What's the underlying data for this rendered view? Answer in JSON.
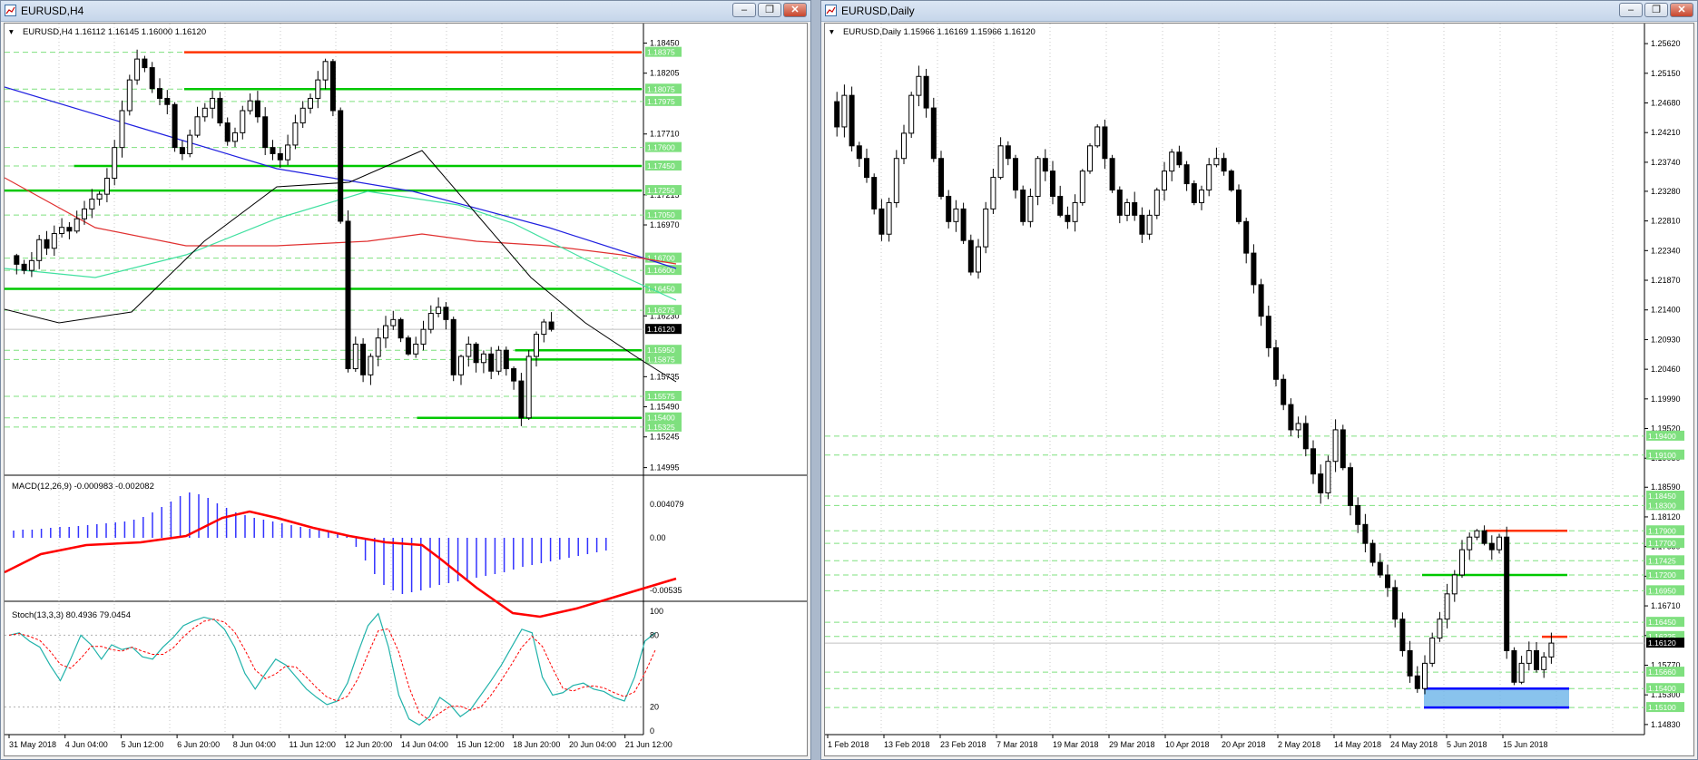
{
  "left_window": {
    "title": "EURUSD,H4",
    "chart_info": "EURUSD,H4  1.16112 1.16145 1.16000 1.16120",
    "price_axis": [
      "1.18450",
      "1.18205",
      "1.17710",
      "1.17215",
      "1.16970",
      "1.16230",
      "1.15735",
      "1.15490",
      "1.15245",
      "1.14995"
    ],
    "level_tags": [
      "1.18375",
      "1.18075",
      "1.17975",
      "1.17600",
      "1.17450",
      "1.17250",
      "1.17050",
      "1.16700",
      "1.16600",
      "1.16450",
      "1.16275",
      "1.15950",
      "1.15875",
      "1.15575",
      "1.15400",
      "1.15325"
    ],
    "current_price": "1.16120",
    "macd_info": "MACD(12,26,9) -0.000983 -0.002082",
    "macd_axis": [
      "0.004079",
      "0.00",
      "-0.00535"
    ],
    "stoch_info": "Stoch(13,3,3) 80.4936 79.0454",
    "stoch_axis": [
      "100",
      "80",
      "20",
      "0"
    ],
    "time_axis": [
      "31 May 2018",
      "4 Jun 04:00",
      "5 Jun 12:00",
      "6 Jun 20:00",
      "8 Jun 04:00",
      "11 Jun 12:00",
      "12 Jun 20:00",
      "14 Jun 04:00",
      "15 Jun 12:00",
      "18 Jun 20:00",
      "20 Jun 04:00",
      "21 Jun 12:00"
    ]
  },
  "right_window": {
    "title": "EURUSD,Daily",
    "chart_info": "EURUSD,Daily  1.15966 1.16169 1.15966 1.16120",
    "price_axis": [
      "1.25620",
      "1.25150",
      "1.24680",
      "1.24210",
      "1.23740",
      "1.23280",
      "1.22810",
      "1.22340",
      "1.21870",
      "1.21400",
      "1.20930",
      "1.20460",
      "1.19990",
      "1.19520",
      "1.19050",
      "1.18590",
      "1.18120",
      "1.17650",
      "1.17180",
      "1.16710",
      "1.16240",
      "1.15770",
      "1.15300",
      "1.14830"
    ],
    "level_tags": [
      "1.19400",
      "1.19100",
      "1.18450",
      "1.18300",
      "1.17900",
      "1.17700",
      "1.17425",
      "1.17200",
      "1.16950",
      "1.16450",
      "1.16225",
      "1.15660",
      "1.15400",
      "1.15100"
    ],
    "current_price": "1.16120",
    "time_axis": [
      "1 Feb 2018",
      "13 Feb 2018",
      "23 Feb 2018",
      "7 Mar 2018",
      "19 Mar 2018",
      "29 Mar 2018",
      "10 Apr 2018",
      "20 Apr 2018",
      "2 May 2018",
      "14 May 2018",
      "24 May 2018",
      "5 Jun 2018",
      "15 Jun 2018"
    ]
  },
  "window_buttons": {
    "minimize": "‒",
    "restore": "❐",
    "close": "✕"
  },
  "colors": {
    "bull": "#ffffff",
    "bear": "#000000",
    "green_line": "#00c800",
    "red_line": "#ff3300",
    "blue_line": "#0000ff",
    "tag_green": "#7fe07f",
    "macd_hist": "#3232ff",
    "macd_signal": "#ff0000",
    "stoch_main": "#20b2aa",
    "stoch_signal": "#ff0000",
    "zone_fill": "#6cb4e8"
  }
}
